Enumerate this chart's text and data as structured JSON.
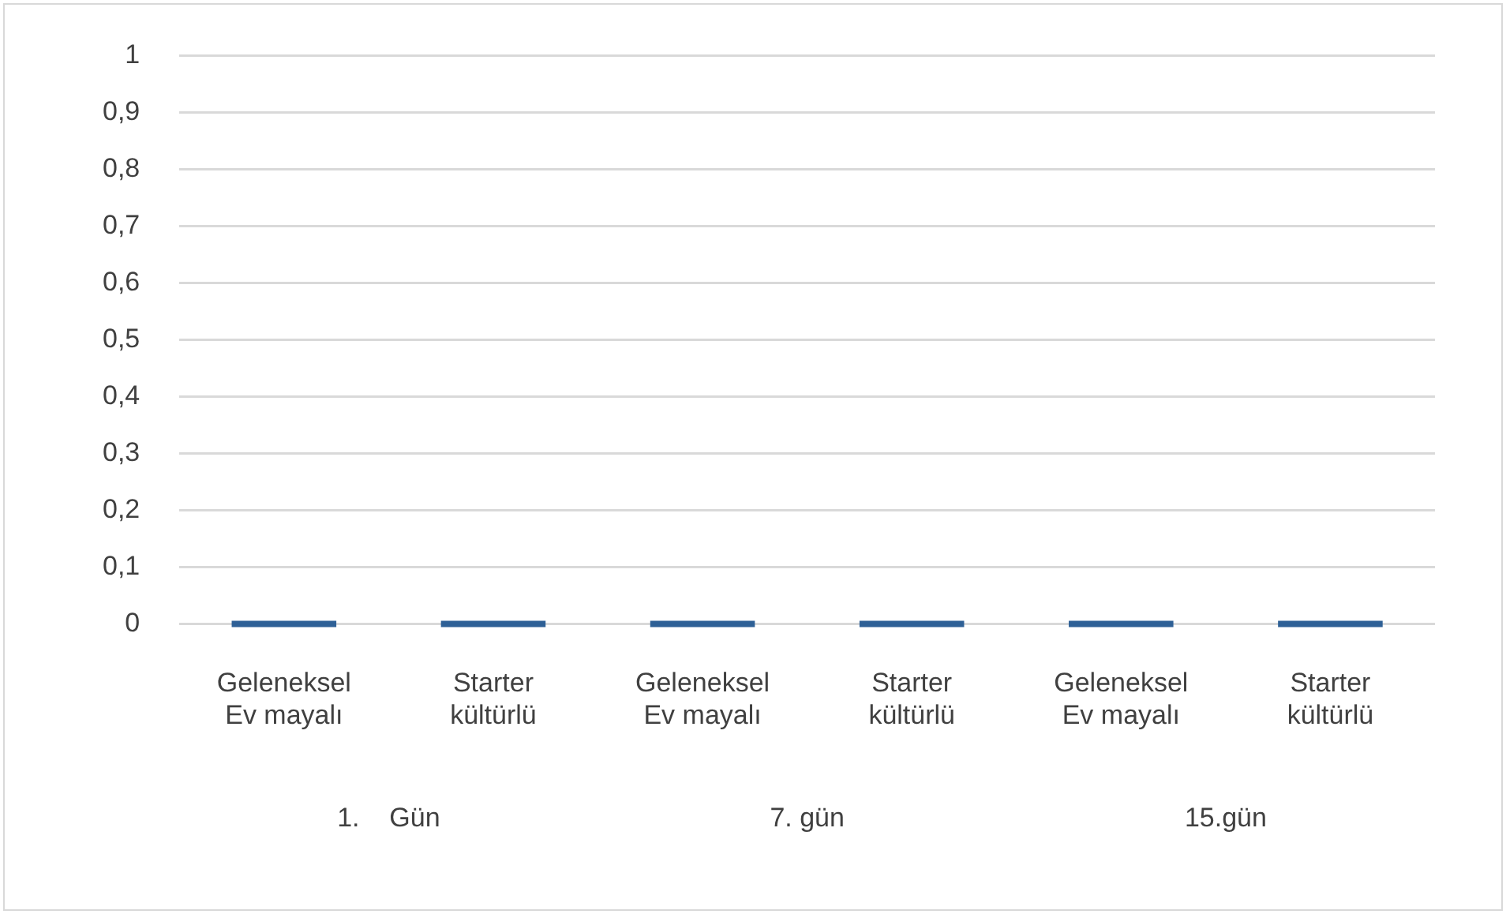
{
  "chart_data": {
    "type": "bar",
    "categories": [
      "Geleneksel Ev mayalı",
      "Starter kültürlü",
      "Geleneksel Ev mayalı",
      "Starter kültürlü",
      "Geleneksel Ev mayalı",
      "Starter kültürlü"
    ],
    "values": [
      0,
      0,
      0,
      0,
      0,
      0
    ],
    "color": "#2e6096",
    "ylim": [
      0,
      1
    ],
    "yticks": [
      0,
      {
        "value": 0.1,
        "label": "0,1"
      },
      {
        "value": 0.2,
        "label": "0,2"
      },
      {
        "value": 0.3,
        "label": "0,3"
      },
      {
        "value": 0.4,
        "label": "0,4"
      },
      {
        "value": 0.5,
        "label": "0,5"
      },
      {
        "value": 0.6,
        "label": "0,6"
      },
      {
        "value": 0.7,
        "label": "0,7"
      },
      {
        "value": 0.8,
        "label": "0,8"
      },
      {
        "value": 0.9,
        "label": "0,9"
      },
      1
    ],
    "grid": "y",
    "legend": false,
    "annotations": [
      "1.    Gün",
      "7. gün",
      "15.gün"
    ]
  }
}
